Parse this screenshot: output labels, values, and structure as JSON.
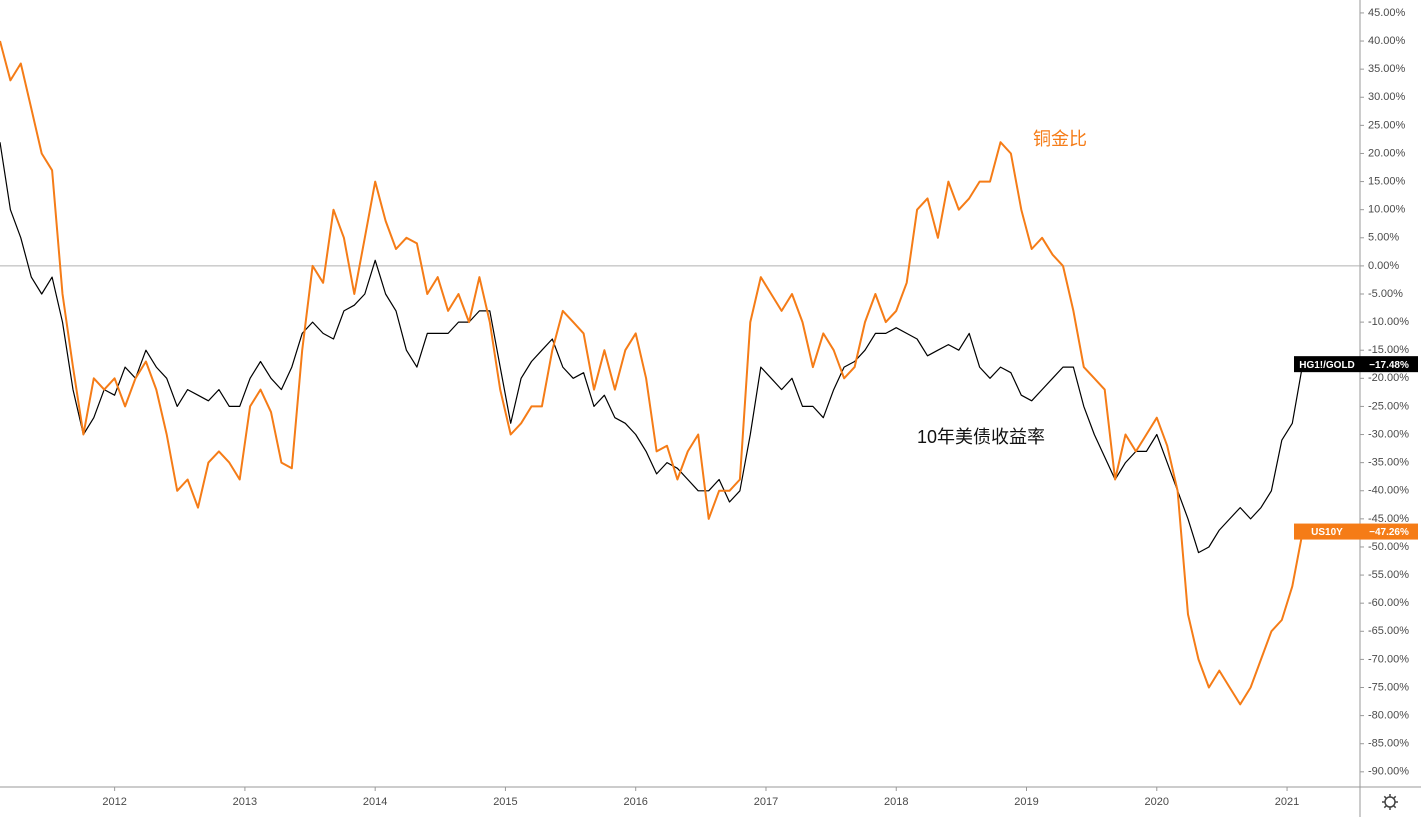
{
  "chart_data": {
    "type": "line",
    "x": [
      2011.12,
      2011.2,
      2011.28,
      2011.36,
      2011.44,
      2011.52,
      2011.6,
      2011.68,
      2011.76,
      2011.84,
      2011.92,
      2012,
      2012.08,
      2012.16,
      2012.24,
      2012.32,
      2012.4,
      2012.48,
      2012.56,
      2012.64,
      2012.72,
      2012.8,
      2012.88,
      2012.96,
      2013.04,
      2013.12,
      2013.2,
      2013.28,
      2013.36,
      2013.44,
      2013.52,
      2013.6,
      2013.68,
      2013.76,
      2013.84,
      2013.92,
      2014,
      2014.08,
      2014.16,
      2014.24,
      2014.32,
      2014.4,
      2014.48,
      2014.56,
      2014.64,
      2014.72,
      2014.8,
      2014.88,
      2014.96,
      2015.04,
      2015.12,
      2015.2,
      2015.28,
      2015.36,
      2015.44,
      2015.52,
      2015.6,
      2015.68,
      2015.76,
      2015.84,
      2015.92,
      2016,
      2016.08,
      2016.16,
      2016.24,
      2016.32,
      2016.4,
      2016.48,
      2016.56,
      2016.64,
      2016.72,
      2016.8,
      2016.88,
      2016.96,
      2017.04,
      2017.12,
      2017.2,
      2017.28,
      2017.36,
      2017.44,
      2017.52,
      2017.6,
      2017.68,
      2017.76,
      2017.84,
      2017.92,
      2018,
      2018.08,
      2018.16,
      2018.24,
      2018.32,
      2018.4,
      2018.48,
      2018.56,
      2018.64,
      2018.72,
      2018.8,
      2018.88,
      2018.96,
      2019.04,
      2019.12,
      2019.2,
      2019.28,
      2019.36,
      2019.44,
      2019.52,
      2019.6,
      2019.68,
      2019.76,
      2019.84,
      2019.92,
      2020,
      2020.08,
      2020.16,
      2020.24,
      2020.32,
      2020.4,
      2020.48,
      2020.56,
      2020.64,
      2020.72,
      2020.8,
      2020.88,
      2020.96,
      2021.04,
      2021.12
    ],
    "series": [
      {
        "name": "HG1!/GOLD",
        "color": "#000000",
        "last_label": "−17.48%",
        "values": [
          22,
          10,
          5,
          -2,
          -5,
          -2,
          -10,
          -22,
          -30,
          -27,
          -22,
          -23,
          -18,
          -20,
          -15,
          -18,
          -20,
          -25,
          -22,
          -23,
          -24,
          -22,
          -25,
          -25,
          -20,
          -17,
          -20,
          -22,
          -18,
          -12,
          -10,
          -12,
          -13,
          -8,
          -7,
          -5,
          1,
          -5,
          -8,
          -15,
          -18,
          -12,
          -12,
          -12,
          -10,
          -10,
          -8,
          -8,
          -18,
          -28,
          -20,
          -17,
          -15,
          -13,
          -18,
          -20,
          -19,
          -25,
          -23,
          -27,
          -28,
          -30,
          -33,
          -37,
          -35,
          -36,
          -38,
          -40,
          -40,
          -38,
          -42,
          -40,
          -30,
          -18,
          -20,
          -22,
          -20,
          -25,
          -25,
          -27,
          -22,
          -18,
          -17,
          -15,
          -12,
          -12,
          -11,
          -12,
          -13,
          -16,
          -15,
          -14,
          -15,
          -12,
          -18,
          -20,
          -18,
          -19,
          -23,
          -24,
          -22,
          -20,
          -18,
          -18,
          -25,
          -30,
          -34,
          -38,
          -35,
          -33,
          -33,
          -30,
          -35,
          -40,
          -45,
          -51,
          -50,
          -47,
          -45,
          -43,
          -45,
          -43,
          -40,
          -31,
          -28,
          -17.48
        ]
      },
      {
        "name": "US10Y",
        "color": "#f57c17",
        "last_label": "−47.26%",
        "values": [
          40,
          33,
          36,
          28,
          20,
          17,
          -5,
          -18,
          -30,
          -20,
          -22,
          -20,
          -25,
          -20,
          -17,
          -22,
          -30,
          -40,
          -38,
          -43,
          -35,
          -33,
          -35,
          -38,
          -25,
          -22,
          -26,
          -35,
          -36,
          -15,
          0,
          -3,
          10,
          5,
          -5,
          5,
          15,
          8,
          3,
          5,
          4,
          -5,
          -2,
          -8,
          -5,
          -10,
          -2,
          -10,
          -22,
          -30,
          -28,
          -25,
          -25,
          -15,
          -8,
          -10,
          -12,
          -22,
          -15,
          -22,
          -15,
          -12,
          -20,
          -33,
          -32,
          -38,
          -33,
          -30,
          -45,
          -40,
          -40,
          -38,
          -10,
          -2,
          -5,
          -8,
          -5,
          -10,
          -18,
          -12,
          -15,
          -20,
          -18,
          -10,
          -5,
          -10,
          -8,
          -3,
          10,
          12,
          5,
          15,
          10,
          12,
          15,
          15,
          22,
          20,
          10,
          3,
          5,
          2,
          0,
          -8,
          -18,
          -20,
          -22,
          -38,
          -30,
          -33,
          -30,
          -27,
          -32,
          -40,
          -62,
          -70,
          -75,
          -72,
          -75,
          -78,
          -75,
          -70,
          -65,
          -63,
          -57,
          -47.26
        ]
      }
    ],
    "xlim": [
      2011.12,
      2021.56
    ],
    "xticks": [
      2012,
      2013,
      2014,
      2015,
      2016,
      2017,
      2018,
      2019,
      2020,
      2021
    ],
    "ylim": [
      -92.7,
      47.3
    ],
    "yticks": [
      {
        "value": 45,
        "label": "45.00%"
      },
      {
        "value": 40,
        "label": "40.00%"
      },
      {
        "value": 35,
        "label": "35.00%"
      },
      {
        "value": 30,
        "label": "30.00%"
      },
      {
        "value": 25,
        "label": "25.00%"
      },
      {
        "value": 20,
        "label": "20.00%"
      },
      {
        "value": 15,
        "label": "15.00%"
      },
      {
        "value": 10,
        "label": "10.00%"
      },
      {
        "value": 5,
        "label": "5.00%"
      },
      {
        "value": 0,
        "label": "0.00%"
      },
      {
        "value": -5,
        "label": "-5.00%"
      },
      {
        "value": -10,
        "label": "-10.00%"
      },
      {
        "value": -15,
        "label": "-15.00%"
      },
      {
        "value": -20,
        "label": "-20.00%"
      },
      {
        "value": -25,
        "label": "-25.00%"
      },
      {
        "value": -30,
        "label": "-30.00%"
      },
      {
        "value": -35,
        "label": "-35.00%"
      },
      {
        "value": -40,
        "label": "-40.00%"
      },
      {
        "value": -45,
        "label": "-45.00%"
      },
      {
        "value": -50,
        "label": "-50.00%"
      },
      {
        "value": -55,
        "label": "-55.00%"
      },
      {
        "value": -60,
        "label": "-60.00%"
      },
      {
        "value": -65,
        "label": "-65.00%"
      },
      {
        "value": -70,
        "label": "-70.00%"
      },
      {
        "value": -75,
        "label": "-75.00%"
      },
      {
        "value": -80,
        "label": "-80.00%"
      },
      {
        "value": -85,
        "label": "-85.00%"
      },
      {
        "value": -90,
        "label": "-90.00%"
      }
    ],
    "baseline": 0,
    "grid": false,
    "annotations": [
      "铜金比",
      "10年美债收益率"
    ]
  }
}
